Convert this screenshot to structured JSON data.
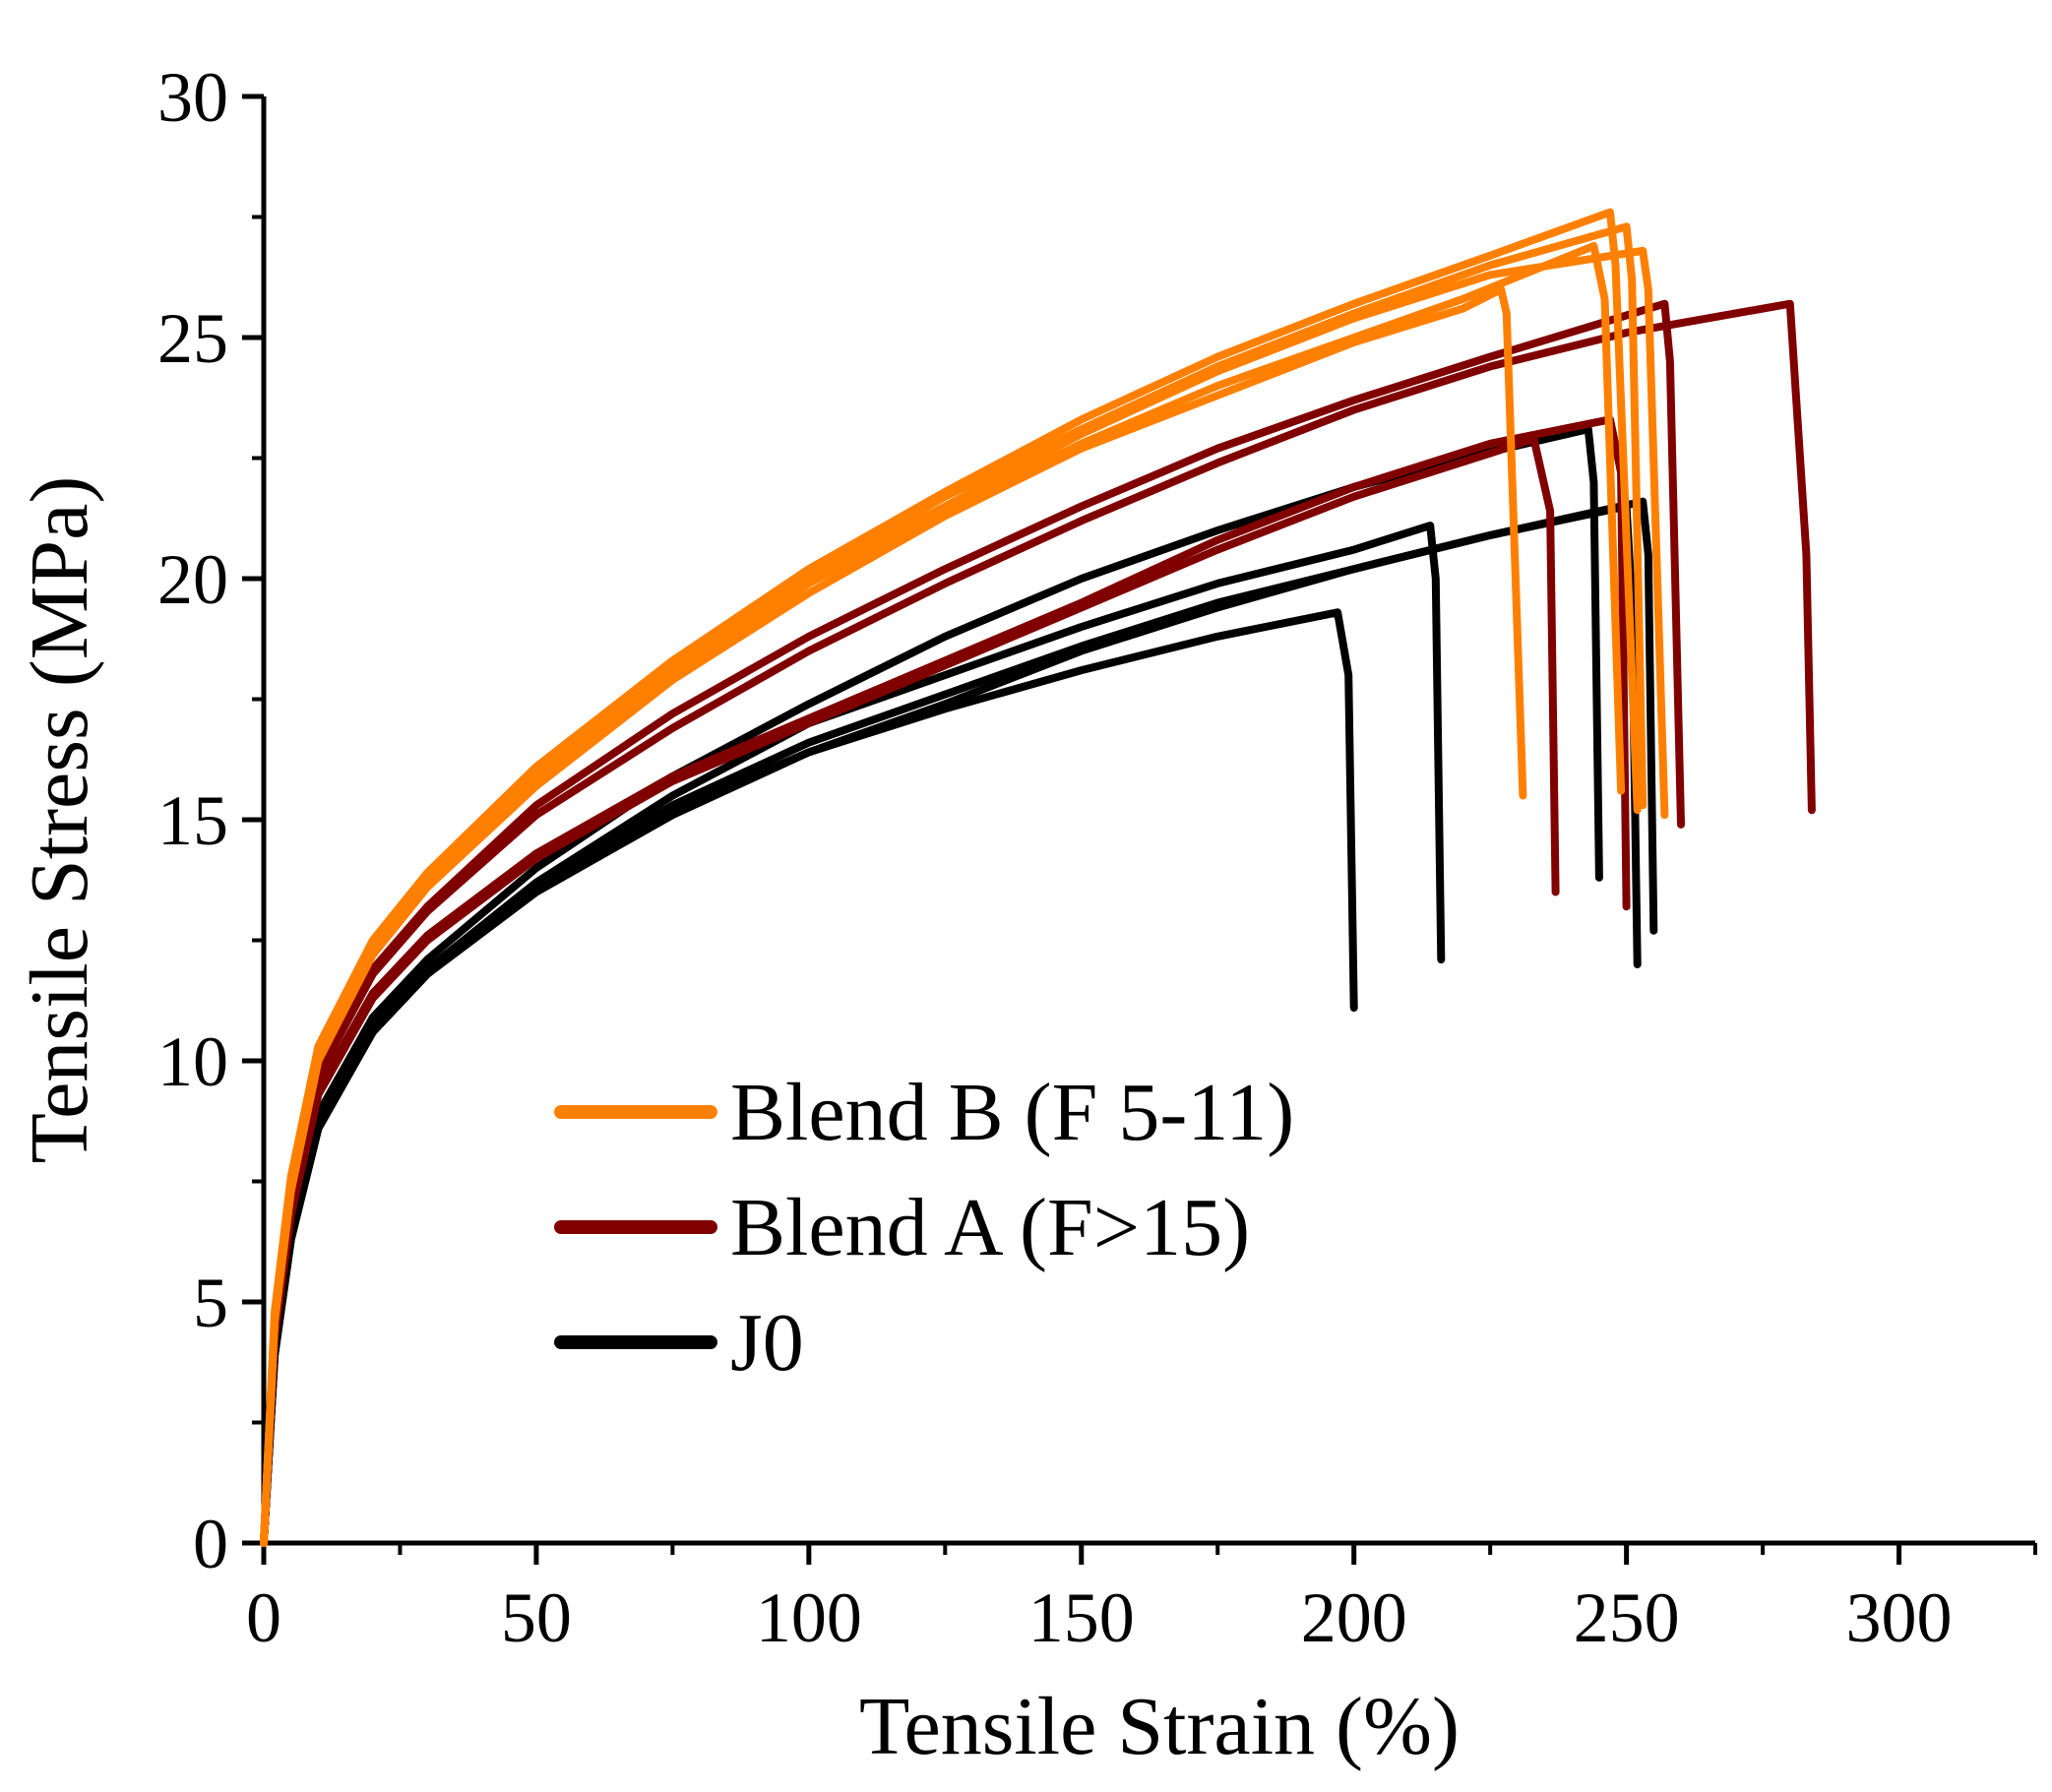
{
  "chart_data": {
    "type": "line",
    "title": "",
    "xlabel": "Tensile Strain (%)",
    "ylabel": "Tensile Stress (MPa)",
    "xlim": [
      0,
      325
    ],
    "ylim": [
      0,
      30
    ],
    "x_ticks": [
      0,
      50,
      100,
      150,
      200,
      250,
      300
    ],
    "y_ticks": [
      0,
      5,
      10,
      15,
      20,
      25,
      30
    ],
    "x_minor_step": 25,
    "y_minor_step": 2.5,
    "grid": false,
    "legend_position": "center",
    "colors": {
      "blend_b": "#ff8000",
      "blend_a": "#800000",
      "j0": "#000000"
    },
    "legend": [
      {
        "label": "Blend B (F 5-11)",
        "color": "#ff8000"
      },
      {
        "label": "Blend A (F>15)",
        "color": "#800000"
      },
      {
        "label": "J0",
        "color": "#000000"
      }
    ],
    "series": [
      {
        "name": "Blend B (F 5-11)",
        "color": "#ff8000",
        "specimens": [
          {
            "points": [
              [
                0,
                0
              ],
              [
                2,
                4.8
              ],
              [
                5,
                7.6
              ],
              [
                10,
                10.3
              ],
              [
                20,
                12.5
              ],
              [
                30,
                13.9
              ],
              [
                50,
                16.1
              ],
              [
                75,
                18.3
              ],
              [
                100,
                20.2
              ],
              [
                125,
                21.8
              ],
              [
                150,
                23.3
              ],
              [
                175,
                24.6
              ],
              [
                200,
                25.7
              ],
              [
                225,
                26.7
              ],
              [
                247,
                27.6
              ],
              [
                248,
                26.5
              ],
              [
                252,
                15.2
              ]
            ]
          },
          {
            "points": [
              [
                0,
                0
              ],
              [
                2,
                4.7
              ],
              [
                5,
                7.5
              ],
              [
                10,
                10.2
              ],
              [
                20,
                12.4
              ],
              [
                30,
                13.8
              ],
              [
                50,
                16.0
              ],
              [
                75,
                18.2
              ],
              [
                100,
                20.1
              ],
              [
                125,
                21.7
              ],
              [
                150,
                23.1
              ],
              [
                175,
                24.4
              ],
              [
                200,
                25.5
              ],
              [
                225,
                26.5
              ],
              [
                250,
                27.3
              ],
              [
                251,
                26.2
              ],
              [
                253,
                15.3
              ]
            ]
          },
          {
            "points": [
              [
                0,
                0
              ],
              [
                2,
                4.7
              ],
              [
                5,
                7.5
              ],
              [
                10,
                10.1
              ],
              [
                20,
                12.3
              ],
              [
                30,
                13.7
              ],
              [
                50,
                15.9
              ],
              [
                75,
                18.1
              ],
              [
                100,
                20.0
              ],
              [
                125,
                21.5
              ],
              [
                150,
                23.0
              ],
              [
                175,
                24.3
              ],
              [
                200,
                25.4
              ],
              [
                225,
                26.3
              ],
              [
                253,
                26.8
              ],
              [
                254,
                26.0
              ],
              [
                257,
                15.1
              ]
            ]
          },
          {
            "points": [
              [
                0,
                0
              ],
              [
                2,
                4.6
              ],
              [
                5,
                7.4
              ],
              [
                10,
                10.1
              ],
              [
                20,
                12.3
              ],
              [
                30,
                13.7
              ],
              [
                50,
                15.8
              ],
              [
                75,
                18.0
              ],
              [
                100,
                19.9
              ],
              [
                125,
                21.4
              ],
              [
                150,
                22.8
              ],
              [
                175,
                24.0
              ],
              [
                200,
                25.0
              ],
              [
                220,
                25.8
              ],
              [
                244,
                26.9
              ],
              [
                246,
                25.8
              ],
              [
                249,
                15.6
              ]
            ]
          },
          {
            "points": [
              [
                0,
                0
              ],
              [
                2,
                4.6
              ],
              [
                5,
                7.3
              ],
              [
                10,
                10.0
              ],
              [
                20,
                12.2
              ],
              [
                30,
                13.6
              ],
              [
                50,
                15.7
              ],
              [
                75,
                17.9
              ],
              [
                100,
                19.7
              ],
              [
                125,
                21.3
              ],
              [
                150,
                22.7
              ],
              [
                175,
                23.8
              ],
              [
                200,
                24.9
              ],
              [
                220,
                25.6
              ],
              [
                227,
                26.0
              ],
              [
                228,
                25.5
              ],
              [
                231,
                15.5
              ]
            ]
          }
        ]
      },
      {
        "name": "Blend A (F>15)",
        "color": "#800000",
        "specimens": [
          {
            "points": [
              [
                0,
                0
              ],
              [
                2,
                4.5
              ],
              [
                5,
                7.2
              ],
              [
                10,
                9.8
              ],
              [
                20,
                11.9
              ],
              [
                30,
                13.2
              ],
              [
                50,
                15.3
              ],
              [
                75,
                17.2
              ],
              [
                100,
                18.8
              ],
              [
                125,
                20.2
              ],
              [
                150,
                21.5
              ],
              [
                175,
                22.7
              ],
              [
                200,
                23.7
              ],
              [
                225,
                24.6
              ],
              [
                257,
                25.7
              ],
              [
                258,
                24.5
              ],
              [
                260,
                14.9
              ]
            ]
          },
          {
            "points": [
              [
                0,
                0
              ],
              [
                2,
                4.4
              ],
              [
                5,
                7.1
              ],
              [
                10,
                9.7
              ],
              [
                20,
                11.8
              ],
              [
                30,
                13.1
              ],
              [
                50,
                15.1
              ],
              [
                75,
                16.9
              ],
              [
                100,
                18.5
              ],
              [
                125,
                19.9
              ],
              [
                150,
                21.2
              ],
              [
                175,
                22.4
              ],
              [
                200,
                23.5
              ],
              [
                225,
                24.4
              ],
              [
                250,
                25.1
              ],
              [
                280,
                25.7
              ],
              [
                283,
                20.5
              ],
              [
                284,
                15.2
              ]
            ]
          },
          {
            "points": [
              [
                0,
                0
              ],
              [
                2,
                4.3
              ],
              [
                5,
                6.9
              ],
              [
                10,
                9.4
              ],
              [
                20,
                11.4
              ],
              [
                30,
                12.6
              ],
              [
                50,
                14.3
              ],
              [
                75,
                15.9
              ],
              [
                100,
                17.1
              ],
              [
                125,
                18.3
              ],
              [
                150,
                19.5
              ],
              [
                175,
                20.8
              ],
              [
                200,
                21.9
              ],
              [
                225,
                22.8
              ],
              [
                247,
                23.3
              ],
              [
                249,
                22.2
              ],
              [
                250,
                13.2
              ]
            ]
          },
          {
            "points": [
              [
                0,
                0
              ],
              [
                2,
                4.3
              ],
              [
                5,
                6.8
              ],
              [
                10,
                9.3
              ],
              [
                20,
                11.3
              ],
              [
                30,
                12.5
              ],
              [
                50,
                14.2
              ],
              [
                75,
                15.8
              ],
              [
                100,
                17.0
              ],
              [
                125,
                18.2
              ],
              [
                150,
                19.4
              ],
              [
                175,
                20.6
              ],
              [
                200,
                21.7
              ],
              [
                225,
                22.6
              ],
              [
                233,
                22.9
              ],
              [
                236,
                21.4
              ],
              [
                237,
                13.5
              ]
            ]
          }
        ]
      },
      {
        "name": "J0",
        "color": "#000000",
        "specimens": [
          {
            "points": [
              [
                0,
                0
              ],
              [
                2,
                4.0
              ],
              [
                5,
                6.5
              ],
              [
                10,
                8.9
              ],
              [
                20,
                10.9
              ],
              [
                30,
                12.1
              ],
              [
                50,
                14.0
              ],
              [
                75,
                15.9
              ],
              [
                100,
                17.4
              ],
              [
                125,
                18.8
              ],
              [
                150,
                20.0
              ],
              [
                175,
                21.0
              ],
              [
                200,
                21.9
              ],
              [
                220,
                22.5
              ],
              [
                243,
                23.1
              ],
              [
                244,
                22.0
              ],
              [
                245,
                13.8
              ]
            ]
          },
          {
            "points": [
              [
                0,
                0
              ],
              [
                2,
                3.9
              ],
              [
                5,
                6.3
              ],
              [
                10,
                8.6
              ],
              [
                20,
                10.6
              ],
              [
                30,
                11.8
              ],
              [
                50,
                13.6
              ],
              [
                75,
                15.3
              ],
              [
                100,
                16.6
              ],
              [
                125,
                17.6
              ],
              [
                150,
                18.6
              ],
              [
                175,
                19.5
              ],
              [
                200,
                20.2
              ],
              [
                225,
                20.9
              ],
              [
                253,
                21.6
              ],
              [
                254,
                20.5
              ],
              [
                255,
                12.7
              ]
            ]
          },
          {
            "points": [
              [
                0,
                0
              ],
              [
                2,
                4.0
              ],
              [
                5,
                6.4
              ],
              [
                10,
                8.7
              ],
              [
                20,
                10.7
              ],
              [
                30,
                11.9
              ],
              [
                50,
                13.7
              ],
              [
                75,
                15.5
              ],
              [
                100,
                17.0
              ],
              [
                125,
                18.0
              ],
              [
                150,
                19.0
              ],
              [
                175,
                19.9
              ],
              [
                200,
                20.6
              ],
              [
                214,
                21.1
              ],
              [
                215,
                20.0
              ],
              [
                216,
                12.1
              ]
            ]
          },
          {
            "points": [
              [
                0,
                0
              ],
              [
                2,
                3.9
              ],
              [
                5,
                6.3
              ],
              [
                10,
                8.6
              ],
              [
                20,
                10.6
              ],
              [
                30,
                11.8
              ],
              [
                50,
                13.6
              ],
              [
                75,
                15.2
              ],
              [
                100,
                16.4
              ],
              [
                125,
                17.3
              ],
              [
                150,
                18.1
              ],
              [
                175,
                18.8
              ],
              [
                197,
                19.3
              ],
              [
                199,
                18.0
              ],
              [
                200,
                11.1
              ]
            ]
          },
          {
            "points": [
              [
                0,
                0
              ],
              [
                2,
                3.9
              ],
              [
                5,
                6.3
              ],
              [
                10,
                8.6
              ],
              [
                20,
                10.6
              ],
              [
                30,
                11.8
              ],
              [
                50,
                13.5
              ],
              [
                75,
                15.1
              ],
              [
                100,
                16.4
              ],
              [
                125,
                17.4
              ],
              [
                150,
                18.5
              ],
              [
                175,
                19.4
              ],
              [
                200,
                20.2
              ],
              [
                225,
                20.9
              ],
              [
                250,
                21.5
              ],
              [
                251,
                19.5
              ],
              [
                252,
                12.0
              ]
            ]
          }
        ]
      }
    ]
  }
}
